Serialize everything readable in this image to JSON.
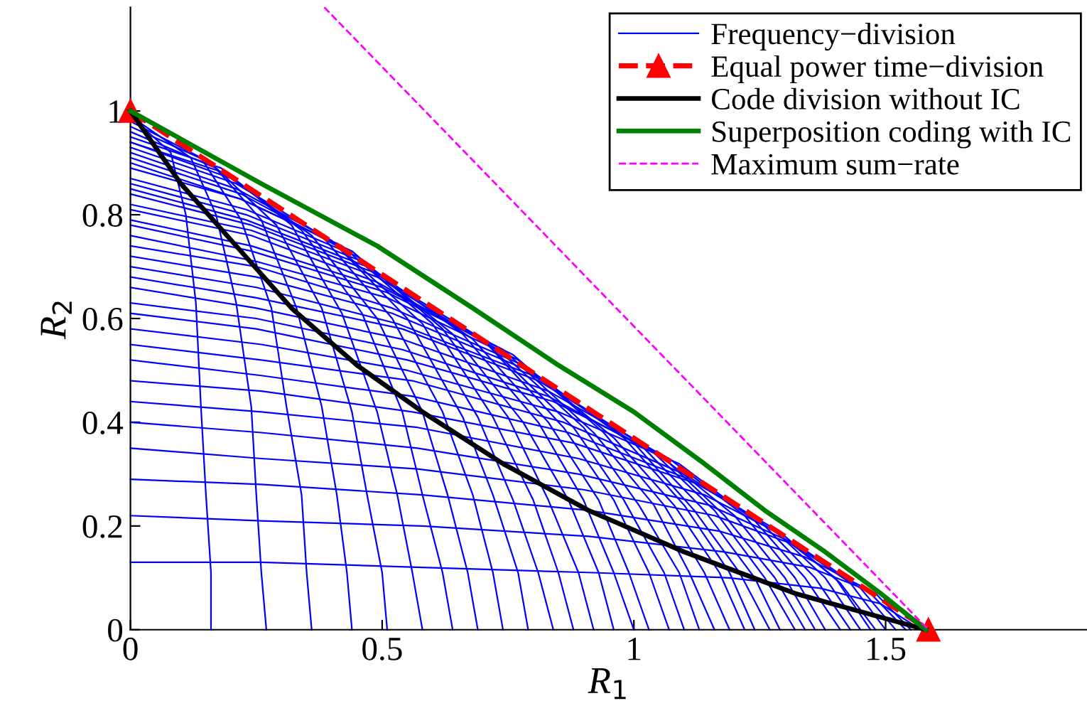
{
  "chart_data": {
    "type": "line",
    "xlabel": "R$_{1}$",
    "ylabel": "R$_{2}$",
    "xlim": [
      0,
      1.9
    ],
    "ylim": [
      0,
      1.2
    ],
    "xticks": [
      0,
      0.5,
      1,
      1.5
    ],
    "yticks": [
      0,
      0.2,
      0.4,
      0.6,
      0.8,
      1
    ],
    "grid": false,
    "legend": "top right",
    "series": [
      {
        "name": "Frequency−division",
        "color": "#0000ff",
        "x": [
          0,
          0.08,
          0.11,
          0.13,
          0.14,
          0.15,
          0.16,
          0.16
        ],
        "values": [
          0.99,
          0.92,
          0.8,
          0.63,
          0.43,
          0.26,
          0.11,
          0
        ]
      },
      {
        "color": "#0000ff",
        "x": [
          0,
          0.12,
          0.17,
          0.21,
          0.24,
          0.25,
          0.26,
          0.27
        ],
        "values": [
          0.99,
          0.91,
          0.8,
          0.63,
          0.43,
          0.26,
          0.11,
          0
        ]
      },
      {
        "color": "#0000ff",
        "x": [
          0,
          0.14,
          0.22,
          0.28,
          0.31,
          0.34,
          0.35,
          0.36
        ],
        "values": [
          0.98,
          0.91,
          0.79,
          0.62,
          0.43,
          0.26,
          0.11,
          0
        ]
      },
      {
        "color": "#0000ff",
        "x": [
          0,
          0.16,
          0.26,
          0.33,
          0.38,
          0.41,
          0.43,
          0.44
        ],
        "values": [
          0.97,
          0.9,
          0.79,
          0.62,
          0.43,
          0.26,
          0.11,
          0
        ]
      },
      {
        "color": "#0000ff",
        "x": [
          0,
          0.17,
          0.29,
          0.38,
          0.44,
          0.47,
          0.5,
          0.51
        ],
        "values": [
          0.96,
          0.89,
          0.78,
          0.62,
          0.42,
          0.26,
          0.11,
          0
        ]
      },
      {
        "color": "#0000ff",
        "x": [
          0,
          0.18,
          0.32,
          0.42,
          0.49,
          0.53,
          0.56,
          0.58
        ],
        "values": [
          0.95,
          0.89,
          0.78,
          0.61,
          0.42,
          0.26,
          0.11,
          0
        ]
      },
      {
        "color": "#0000ff",
        "x": [
          0,
          0.19,
          0.34,
          0.46,
          0.54,
          0.58,
          0.62,
          0.64
        ],
        "values": [
          0.94,
          0.88,
          0.77,
          0.61,
          0.42,
          0.26,
          0.11,
          0
        ]
      },
      {
        "color": "#0000ff",
        "x": [
          0,
          0.2,
          0.36,
          0.49,
          0.58,
          0.63,
          0.67,
          0.69
        ],
        "values": [
          0.94,
          0.87,
          0.76,
          0.6,
          0.42,
          0.26,
          0.11,
          0
        ]
      },
      {
        "color": "#0000ff",
        "x": [
          0,
          0.21,
          0.38,
          0.52,
          0.62,
          0.68,
          0.72,
          0.74
        ],
        "values": [
          0.93,
          0.86,
          0.76,
          0.6,
          0.42,
          0.26,
          0.11,
          0
        ]
      },
      {
        "color": "#0000ff",
        "x": [
          0,
          0.21,
          0.4,
          0.55,
          0.66,
          0.72,
          0.77,
          0.79
        ],
        "values": [
          0.92,
          0.85,
          0.75,
          0.6,
          0.41,
          0.26,
          0.11,
          0
        ]
      },
      {
        "color": "#0000ff",
        "x": [
          0,
          0.22,
          0.41,
          0.58,
          0.69,
          0.76,
          0.81,
          0.84
        ],
        "values": [
          0.91,
          0.84,
          0.74,
          0.59,
          0.41,
          0.25,
          0.11,
          0
        ]
      },
      {
        "color": "#0000ff",
        "x": [
          0,
          0.22,
          0.42,
          0.6,
          0.72,
          0.8,
          0.85,
          0.88
        ],
        "values": [
          0.9,
          0.83,
          0.74,
          0.59,
          0.41,
          0.25,
          0.11,
          0
        ]
      },
      {
        "color": "#0000ff",
        "x": [
          0,
          0.22,
          0.44,
          0.62,
          0.75,
          0.83,
          0.89,
          0.92
        ],
        "values": [
          0.89,
          0.83,
          0.73,
          0.58,
          0.41,
          0.25,
          0.11,
          0
        ]
      },
      {
        "color": "#0000ff",
        "x": [
          0,
          0.23,
          0.45,
          0.64,
          0.78,
          0.87,
          0.93,
          0.96
        ],
        "values": [
          0.87,
          0.81,
          0.72,
          0.57,
          0.4,
          0.25,
          0.11,
          0
        ]
      },
      {
        "color": "#0000ff",
        "x": [
          0,
          0.23,
          0.46,
          0.66,
          0.81,
          0.9,
          0.96,
          1.0
        ],
        "values": [
          0.86,
          0.8,
          0.71,
          0.57,
          0.4,
          0.25,
          0.11,
          0
        ]
      },
      {
        "color": "#0000ff",
        "x": [
          0,
          0.23,
          0.47,
          0.68,
          0.83,
          0.93,
          0.99,
          1.03
        ],
        "values": [
          0.85,
          0.79,
          0.7,
          0.56,
          0.4,
          0.25,
          0.11,
          0
        ]
      },
      {
        "color": "#0000ff",
        "x": [
          0,
          0.24,
          0.48,
          0.7,
          0.86,
          0.96,
          1.03,
          1.07
        ],
        "values": [
          0.84,
          0.78,
          0.69,
          0.56,
          0.39,
          0.25,
          0.11,
          0
        ]
      },
      {
        "color": "#0000ff",
        "x": [
          0,
          0.24,
          0.49,
          0.71,
          0.88,
          0.98,
          1.06,
          1.1
        ],
        "values": [
          0.82,
          0.77,
          0.68,
          0.55,
          0.39,
          0.25,
          0.11,
          0
        ]
      },
      {
        "color": "#0000ff",
        "x": [
          0,
          0.24,
          0.49,
          0.73,
          0.9,
          1.01,
          1.09,
          1.13
        ],
        "values": [
          0.81,
          0.76,
          0.67,
          0.54,
          0.39,
          0.24,
          0.11,
          0
        ]
      },
      {
        "color": "#0000ff",
        "x": [
          0,
          0.24,
          0.5,
          0.74,
          0.92,
          1.04,
          1.11,
          1.16
        ],
        "values": [
          0.79,
          0.74,
          0.66,
          0.54,
          0.38,
          0.24,
          0.11,
          0
        ]
      },
      {
        "color": "#0000ff",
        "x": [
          0,
          0.24,
          0.51,
          0.76,
          0.94,
          1.06,
          1.14,
          1.19
        ],
        "values": [
          0.78,
          0.73,
          0.65,
          0.53,
          0.38,
          0.24,
          0.11,
          0
        ]
      },
      {
        "color": "#0000ff",
        "x": [
          0,
          0.25,
          0.51,
          0.77,
          0.96,
          1.08,
          1.17,
          1.22
        ],
        "values": [
          0.76,
          0.71,
          0.64,
          0.52,
          0.37,
          0.24,
          0.11,
          0
        ]
      },
      {
        "color": "#0000ff",
        "x": [
          0,
          0.25,
          0.52,
          0.78,
          0.98,
          1.1,
          1.19,
          1.24
        ],
        "values": [
          0.74,
          0.7,
          0.62,
          0.51,
          0.37,
          0.24,
          0.11,
          0
        ]
      },
      {
        "color": "#0000ff",
        "x": [
          0,
          0.25,
          0.52,
          0.79,
          1.0,
          1.12,
          1.21,
          1.27
        ],
        "values": [
          0.72,
          0.68,
          0.61,
          0.5,
          0.36,
          0.23,
          0.11,
          0
        ]
      },
      {
        "color": "#0000ff",
        "x": [
          0,
          0.25,
          0.53,
          0.8,
          1.01,
          1.14,
          1.24,
          1.29
        ],
        "values": [
          0.7,
          0.66,
          0.59,
          0.49,
          0.36,
          0.23,
          0.1,
          0
        ]
      },
      {
        "color": "#0000ff",
        "x": [
          0,
          0.25,
          0.54,
          0.81,
          1.03,
          1.16,
          1.26,
          1.32
        ],
        "values": [
          0.68,
          0.64,
          0.58,
          0.48,
          0.35,
          0.23,
          0.1,
          0
        ]
      },
      {
        "color": "#0000ff",
        "x": [
          0,
          0.25,
          0.54,
          0.83,
          1.05,
          1.18,
          1.28,
          1.34
        ],
        "values": [
          0.66,
          0.62,
          0.56,
          0.46,
          0.34,
          0.22,
          0.1,
          0
        ]
      },
      {
        "color": "#0000ff",
        "x": [
          0,
          0.25,
          0.54,
          0.83,
          1.06,
          1.2,
          1.3,
          1.36
        ],
        "values": [
          0.63,
          0.6,
          0.54,
          0.45,
          0.33,
          0.22,
          0.1,
          0
        ]
      },
      {
        "color": "#0000ff",
        "x": [
          0,
          0.25,
          0.55,
          0.84,
          1.07,
          1.22,
          1.32,
          1.38
        ],
        "values": [
          0.61,
          0.58,
          0.52,
          0.44,
          0.33,
          0.22,
          0.1,
          0
        ]
      },
      {
        "color": "#0000ff",
        "x": [
          0,
          0.26,
          0.55,
          0.85,
          1.09,
          1.24,
          1.34,
          1.41
        ],
        "values": [
          0.58,
          0.55,
          0.5,
          0.42,
          0.32,
          0.21,
          0.1,
          0
        ]
      },
      {
        "color": "#0000ff",
        "x": [
          0,
          0.26,
          0.56,
          0.86,
          1.1,
          1.25,
          1.36,
          1.43
        ],
        "values": [
          0.55,
          0.52,
          0.48,
          0.4,
          0.3,
          0.21,
          0.1,
          0
        ]
      },
      {
        "color": "#0000ff",
        "x": [
          0,
          0.26,
          0.56,
          0.87,
          1.11,
          1.27,
          1.38,
          1.45
        ],
        "values": [
          0.52,
          0.49,
          0.45,
          0.38,
          0.29,
          0.2,
          0.1,
          0
        ]
      },
      {
        "color": "#0000ff",
        "x": [
          0,
          0.26,
          0.56,
          0.88,
          1.13,
          1.28,
          1.4,
          1.47
        ],
        "values": [
          0.48,
          0.46,
          0.42,
          0.36,
          0.28,
          0.19,
          0.1,
          0
        ]
      },
      {
        "color": "#0000ff",
        "x": [
          0,
          0.26,
          0.57,
          0.89,
          1.14,
          1.3,
          1.41,
          1.48
        ],
        "values": [
          0.44,
          0.42,
          0.39,
          0.33,
          0.26,
          0.18,
          0.09,
          0
        ]
      },
      {
        "color": "#0000ff",
        "x": [
          0,
          0.26,
          0.57,
          0.89,
          1.15,
          1.31,
          1.43,
          1.5
        ],
        "values": [
          0.4,
          0.38,
          0.35,
          0.3,
          0.24,
          0.17,
          0.09,
          0
        ]
      },
      {
        "color": "#0000ff",
        "x": [
          0,
          0.26,
          0.57,
          0.9,
          1.16,
          1.33,
          1.45,
          1.52
        ],
        "values": [
          0.35,
          0.33,
          0.31,
          0.27,
          0.22,
          0.16,
          0.08,
          0
        ]
      },
      {
        "color": "#0000ff",
        "x": [
          0,
          0.26,
          0.58,
          0.91,
          1.17,
          1.34,
          1.46,
          1.54
        ],
        "values": [
          0.29,
          0.28,
          0.26,
          0.23,
          0.19,
          0.14,
          0.08,
          0
        ]
      },
      {
        "color": "#0000ff",
        "x": [
          0,
          0.26,
          0.58,
          0.91,
          1.18,
          1.35,
          1.48,
          1.55
        ],
        "values": [
          0.22,
          0.21,
          0.2,
          0.18,
          0.15,
          0.12,
          0.07,
          0
        ]
      },
      {
        "color": "#0000ff",
        "x": [
          0,
          0.26,
          0.58,
          0.92,
          1.19,
          1.37,
          1.49,
          1.57
        ],
        "values": [
          0.13,
          0.13,
          0.12,
          0.11,
          0.1,
          0.08,
          0.05,
          0
        ]
      },
      {
        "name": "Equal power time−division",
        "color": "#ff0000",
        "line_style": "dashed",
        "marker": "triangle",
        "x": [
          0,
          1.585
        ],
        "values": [
          1,
          0
        ]
      },
      {
        "name": "Code division without IC",
        "color": "#000000",
        "x": [
          0,
          0.1,
          0.21,
          0.32,
          0.45,
          0.58,
          0.74,
          0.91,
          1.1,
          1.32,
          1.58
        ],
        "values": [
          1.0,
          0.86,
          0.74,
          0.62,
          0.51,
          0.42,
          0.32,
          0.23,
          0.15,
          0.07,
          0
        ]
      },
      {
        "name": "Superposition coding with IC",
        "color": "#008000",
        "x": [
          0,
          0.26,
          0.49,
          0.68,
          0.85,
          1.0,
          1.14,
          1.26,
          1.38,
          1.49,
          1.58
        ],
        "values": [
          1.0,
          0.86,
          0.74,
          0.62,
          0.51,
          0.42,
          0.32,
          0.23,
          0.15,
          0.07,
          0
        ]
      },
      {
        "name": "Maximum sum−rate",
        "color": "#ff00ff",
        "line_style": "dashed",
        "x": [
          0.385,
          1.585
        ],
        "values": [
          1.2,
          0
        ]
      }
    ]
  }
}
